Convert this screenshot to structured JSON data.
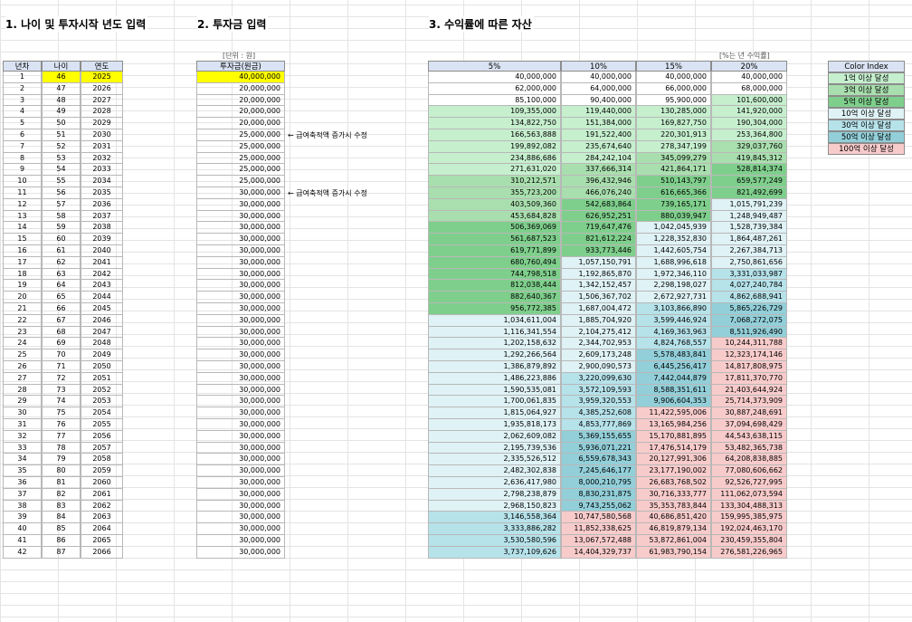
{
  "titles": {
    "s1": "1. 나이 및 투자시작 년도 입력",
    "s2": "2. 투자금 입력",
    "s3": "3. 수익률에 따른 자산"
  },
  "notes": {
    "unit": "[단위 : 원]",
    "rate": "[%는 년 수익률]"
  },
  "headers": {
    "year_no": "년차",
    "age": "나이",
    "year": "연도",
    "invest": "투자금(원금)",
    "r5": "5%",
    "r10": "10%",
    "r15": "15%",
    "r20": "20%"
  },
  "annotations": [
    {
      "row": 5,
      "text": "← 급여축적액 증가시 수정"
    },
    {
      "row": 10,
      "text": "← 급여축적액 증가시 수정"
    }
  ],
  "legend": {
    "title": "Color Index",
    "items": [
      {
        "label": "1억 이상 달성",
        "color": "#c6efce"
      },
      {
        "label": "3억 이상 달성",
        "color": "#a9dfae"
      },
      {
        "label": "5억 이상 달성",
        "color": "#7fcf8c"
      },
      {
        "label": "10억 이상 달성",
        "color": "#dff2f5"
      },
      {
        "label": "30억 이상 달성",
        "color": "#b6e2ea"
      },
      {
        "label": "50억 이상 달성",
        "color": "#92cfd9"
      },
      {
        "label": "100억 이상 달성",
        "color": "#f8cbcb"
      }
    ]
  },
  "rows": [
    {
      "n": "1",
      "age": "46",
      "year": "2025",
      "inv": "40,000,000",
      "r5": "40,000,000",
      "r10": "40,000,000",
      "r15": "40,000,000",
      "r20": "40,000,000"
    },
    {
      "n": "2",
      "age": "47",
      "year": "2026",
      "inv": "20,000,000",
      "r5": "62,000,000",
      "r10": "64,000,000",
      "r15": "66,000,000",
      "r20": "68,000,000"
    },
    {
      "n": "3",
      "age": "48",
      "year": "2027",
      "inv": "20,000,000",
      "r5": "85,100,000",
      "r10": "90,400,000",
      "r15": "95,900,000",
      "r20": "101,600,000"
    },
    {
      "n": "4",
      "age": "49",
      "year": "2028",
      "inv": "20,000,000",
      "r5": "109,355,000",
      "r10": "119,440,000",
      "r15": "130,285,000",
      "r20": "141,920,000"
    },
    {
      "n": "5",
      "age": "50",
      "year": "2029",
      "inv": "20,000,000",
      "r5": "134,822,750",
      "r10": "151,384,000",
      "r15": "169,827,750",
      "r20": "190,304,000"
    },
    {
      "n": "6",
      "age": "51",
      "year": "2030",
      "inv": "25,000,000",
      "r5": "166,563,888",
      "r10": "191,522,400",
      "r15": "220,301,913",
      "r20": "253,364,800"
    },
    {
      "n": "7",
      "age": "52",
      "year": "2031",
      "inv": "25,000,000",
      "r5": "199,892,082",
      "r10": "235,674,640",
      "r15": "278,347,199",
      "r20": "329,037,760"
    },
    {
      "n": "8",
      "age": "53",
      "year": "2032",
      "inv": "25,000,000",
      "r5": "234,886,686",
      "r10": "284,242,104",
      "r15": "345,099,279",
      "r20": "419,845,312"
    },
    {
      "n": "9",
      "age": "54",
      "year": "2033",
      "inv": "25,000,000",
      "r5": "271,631,020",
      "r10": "337,666,314",
      "r15": "421,864,171",
      "r20": "528,814,374"
    },
    {
      "n": "10",
      "age": "55",
      "year": "2034",
      "inv": "25,000,000",
      "r5": "310,212,571",
      "r10": "396,432,946",
      "r15": "510,143,797",
      "r20": "659,577,249"
    },
    {
      "n": "11",
      "age": "56",
      "year": "2035",
      "inv": "30,000,000",
      "r5": "355,723,200",
      "r10": "466,076,240",
      "r15": "616,665,366",
      "r20": "821,492,699"
    },
    {
      "n": "12",
      "age": "57",
      "year": "2036",
      "inv": "30,000,000",
      "r5": "403,509,360",
      "r10": "542,683,864",
      "r15": "739,165,171",
      "r20": "1,015,791,239"
    },
    {
      "n": "13",
      "age": "58",
      "year": "2037",
      "inv": "30,000,000",
      "r5": "453,684,828",
      "r10": "626,952,251",
      "r15": "880,039,947",
      "r20": "1,248,949,487"
    },
    {
      "n": "14",
      "age": "59",
      "year": "2038",
      "inv": "30,000,000",
      "r5": "506,369,069",
      "r10": "719,647,476",
      "r15": "1,042,045,939",
      "r20": "1,528,739,384"
    },
    {
      "n": "15",
      "age": "60",
      "year": "2039",
      "inv": "30,000,000",
      "r5": "561,687,523",
      "r10": "821,612,224",
      "r15": "1,228,352,830",
      "r20": "1,864,487,261"
    },
    {
      "n": "16",
      "age": "61",
      "year": "2040",
      "inv": "30,000,000",
      "r5": "619,771,899",
      "r10": "933,773,446",
      "r15": "1,442,605,754",
      "r20": "2,267,384,713"
    },
    {
      "n": "17",
      "age": "62",
      "year": "2041",
      "inv": "30,000,000",
      "r5": "680,760,494",
      "r10": "1,057,150,791",
      "r15": "1,688,996,618",
      "r20": "2,750,861,656"
    },
    {
      "n": "18",
      "age": "63",
      "year": "2042",
      "inv": "30,000,000",
      "r5": "744,798,518",
      "r10": "1,192,865,870",
      "r15": "1,972,346,110",
      "r20": "3,331,033,987"
    },
    {
      "n": "19",
      "age": "64",
      "year": "2043",
      "inv": "30,000,000",
      "r5": "812,038,444",
      "r10": "1,342,152,457",
      "r15": "2,298,198,027",
      "r20": "4,027,240,784"
    },
    {
      "n": "20",
      "age": "65",
      "year": "2044",
      "inv": "30,000,000",
      "r5": "882,640,367",
      "r10": "1,506,367,702",
      "r15": "2,672,927,731",
      "r20": "4,862,688,941"
    },
    {
      "n": "21",
      "age": "66",
      "year": "2045",
      "inv": "30,000,000",
      "r5": "956,772,385",
      "r10": "1,687,004,472",
      "r15": "3,103,866,890",
      "r20": "5,865,226,729"
    },
    {
      "n": "22",
      "age": "67",
      "year": "2046",
      "inv": "30,000,000",
      "r5": "1,034,611,004",
      "r10": "1,885,704,920",
      "r15": "3,599,446,924",
      "r20": "7,068,272,075"
    },
    {
      "n": "23",
      "age": "68",
      "year": "2047",
      "inv": "30,000,000",
      "r5": "1,116,341,554",
      "r10": "2,104,275,412",
      "r15": "4,169,363,963",
      "r20": "8,511,926,490"
    },
    {
      "n": "24",
      "age": "69",
      "year": "2048",
      "inv": "30,000,000",
      "r5": "1,202,158,632",
      "r10": "2,344,702,953",
      "r15": "4,824,768,557",
      "r20": "10,244,311,788"
    },
    {
      "n": "25",
      "age": "70",
      "year": "2049",
      "inv": "30,000,000",
      "r5": "1,292,266,564",
      "r10": "2,609,173,248",
      "r15": "5,578,483,841",
      "r20": "12,323,174,146"
    },
    {
      "n": "26",
      "age": "71",
      "year": "2050",
      "inv": "30,000,000",
      "r5": "1,386,879,892",
      "r10": "2,900,090,573",
      "r15": "6,445,256,417",
      "r20": "14,817,808,975"
    },
    {
      "n": "27",
      "age": "72",
      "year": "2051",
      "inv": "30,000,000",
      "r5": "1,486,223,886",
      "r10": "3,220,099,630",
      "r15": "7,442,044,879",
      "r20": "17,811,370,770"
    },
    {
      "n": "28",
      "age": "73",
      "year": "2052",
      "inv": "30,000,000",
      "r5": "1,590,535,081",
      "r10": "3,572,109,593",
      "r15": "8,588,351,611",
      "r20": "21,403,644,924"
    },
    {
      "n": "29",
      "age": "74",
      "year": "2053",
      "inv": "30,000,000",
      "r5": "1,700,061,835",
      "r10": "3,959,320,553",
      "r15": "9,906,604,353",
      "r20": "25,714,373,909"
    },
    {
      "n": "30",
      "age": "75",
      "year": "2054",
      "inv": "30,000,000",
      "r5": "1,815,064,927",
      "r10": "4,385,252,608",
      "r15": "11,422,595,006",
      "r20": "30,887,248,691"
    },
    {
      "n": "31",
      "age": "76",
      "year": "2055",
      "inv": "30,000,000",
      "r5": "1,935,818,173",
      "r10": "4,853,777,869",
      "r15": "13,165,984,256",
      "r20": "37,094,698,429"
    },
    {
      "n": "32",
      "age": "77",
      "year": "2056",
      "inv": "30,000,000",
      "r5": "2,062,609,082",
      "r10": "5,369,155,655",
      "r15": "15,170,881,895",
      "r20": "44,543,638,115"
    },
    {
      "n": "33",
      "age": "78",
      "year": "2057",
      "inv": "30,000,000",
      "r5": "2,195,739,536",
      "r10": "5,936,071,221",
      "r15": "17,476,514,179",
      "r20": "53,482,365,738"
    },
    {
      "n": "34",
      "age": "79",
      "year": "2058",
      "inv": "30,000,000",
      "r5": "2,335,526,512",
      "r10": "6,559,678,343",
      "r15": "20,127,991,306",
      "r20": "64,208,838,885"
    },
    {
      "n": "35",
      "age": "80",
      "year": "2059",
      "inv": "30,000,000",
      "r5": "2,482,302,838",
      "r10": "7,245,646,177",
      "r15": "23,177,190,002",
      "r20": "77,080,606,662"
    },
    {
      "n": "36",
      "age": "81",
      "year": "2060",
      "inv": "30,000,000",
      "r5": "2,636,417,980",
      "r10": "8,000,210,795",
      "r15": "26,683,768,502",
      "r20": "92,526,727,995"
    },
    {
      "n": "37",
      "age": "82",
      "year": "2061",
      "inv": "30,000,000",
      "r5": "2,798,238,879",
      "r10": "8,830,231,875",
      "r15": "30,716,333,777",
      "r20": "111,062,073,594"
    },
    {
      "n": "38",
      "age": "83",
      "year": "2062",
      "inv": "30,000,000",
      "r5": "2,968,150,823",
      "r10": "9,743,255,062",
      "r15": "35,353,783,844",
      "r20": "133,304,488,313"
    },
    {
      "n": "39",
      "age": "84",
      "year": "2063",
      "inv": "30,000,000",
      "r5": "3,146,558,364",
      "r10": "10,747,580,568",
      "r15": "40,686,851,420",
      "r20": "159,995,385,975"
    },
    {
      "n": "40",
      "age": "85",
      "year": "2064",
      "inv": "30,000,000",
      "r5": "3,333,886,282",
      "r10": "11,852,338,625",
      "r15": "46,819,879,134",
      "r20": "192,024,463,170"
    },
    {
      "n": "41",
      "age": "86",
      "year": "2065",
      "inv": "30,000,000",
      "r5": "3,530,580,596",
      "r10": "13,067,572,488",
      "r15": "53,872,861,004",
      "r20": "230,459,355,804"
    },
    {
      "n": "42",
      "age": "87",
      "year": "2066",
      "inv": "30,000,000",
      "r5": "3,737,109,626",
      "r10": "14,404,329,737",
      "r15": "61,983,790,154",
      "r20": "276,581,226,965"
    }
  ]
}
